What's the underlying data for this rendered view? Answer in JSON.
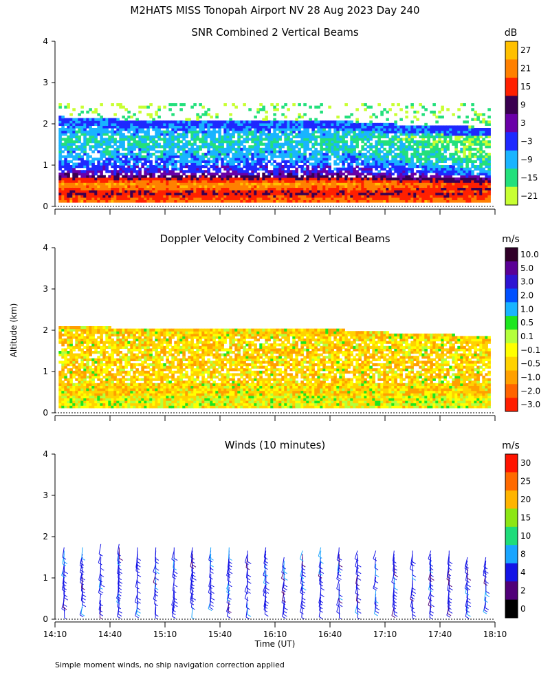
{
  "chart_data": {
    "type": "heatmap",
    "title": "M2HATS MISS Tonopah Airport NV  28 Aug 2023 Day 240",
    "ylabel": "Altitude (km)",
    "xlabel": "Time (UT)",
    "x_tick_labels": [
      "14:10",
      "14:40",
      "15:10",
      "15:40",
      "16:10",
      "16:40",
      "17:10",
      "17:40",
      "18:10"
    ],
    "x_range_minutes_utc": [
      850,
      1090
    ],
    "y_ticks": [
      "0",
      "1",
      "2",
      "3",
      "4"
    ],
    "ylim_km": [
      0,
      4
    ],
    "footnote": "Simple moment winds, no ship navigation correction applied",
    "panels": [
      {
        "name": "snr",
        "title": "SNR Combined 2 Vertical Beams",
        "units": "dB",
        "colorbar_labels": [
          "27",
          "21",
          "15",
          "9",
          "3",
          "−3",
          "−9",
          "−15",
          "−21"
        ],
        "colorbar_colors": [
          "#ffc000",
          "#ff8000",
          "#ff2000",
          "#3a0050",
          "#6a00a8",
          "#1e28ff",
          "#19b4ff",
          "#23e07c",
          "#c8ff32"
        ],
        "profile_snr_db_by_height_km": [
          [
            0.1,
            20
          ],
          [
            0.3,
            12
          ],
          [
            0.5,
            24
          ],
          [
            0.8,
            0
          ],
          [
            1.2,
            -9
          ],
          [
            1.6,
            -12
          ],
          [
            1.95,
            -6
          ],
          [
            2.3,
            -21
          ]
        ],
        "boundary_layer_top_km": [
          [
            850,
            2.05
          ],
          [
            900,
            1.95
          ],
          [
            960,
            1.95
          ],
          [
            1000,
            1.95
          ],
          [
            1040,
            1.85
          ],
          [
            1075,
            1.8
          ]
        ]
      },
      {
        "name": "doppler",
        "title": "Doppler Velocity Combined 2 Vertical Beams",
        "units": "m/s",
        "colorbar_labels": [
          "10.0",
          "5.0",
          "3.0",
          "2.0",
          "1.0",
          "0.5",
          "0.1",
          "−0.1",
          "−0.5",
          "−1.0",
          "−2.0",
          "−3.0"
        ],
        "colorbar_colors": [
          "#300028",
          "#5a0096",
          "#2d14d2",
          "#0050ff",
          "#19b4ff",
          "#1ee61e",
          "#b4ff3c",
          "#ffff00",
          "#ffd200",
          "#ffa000",
          "#ff6400",
          "#ff1e00"
        ],
        "typical_velocity_m_s": -0.5
      },
      {
        "name": "winds",
        "title": "Winds (10 minutes)",
        "units": "m/s",
        "colorbar_labels": [
          "30",
          "25",
          "20",
          "15",
          "10",
          "8",
          "4",
          "2",
          "0"
        ],
        "colorbar_colors": [
          "#ff1400",
          "#ff6a00",
          "#ffb400",
          "#8ce614",
          "#1edc7a",
          "#19a5ff",
          "#1414e6",
          "#500078",
          "#000000"
        ],
        "barb_interval_minutes": 10,
        "typical_speed_m_s": 6,
        "typical_direction_deg": 200
      }
    ]
  }
}
